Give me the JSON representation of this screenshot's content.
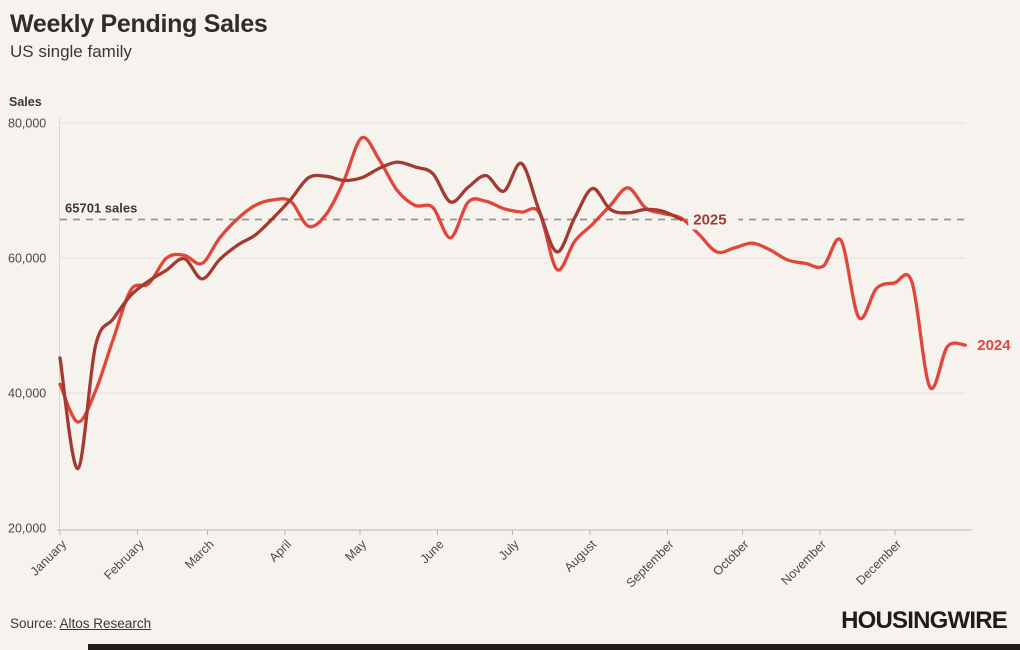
{
  "header": {
    "title": "Weekly Pending Sales",
    "subtitle": "US single family"
  },
  "footer": {
    "source_prefix": "Source: ",
    "source_link": "Altos Research",
    "logo": "HOUSINGWIRE"
  },
  "colors": {
    "background": "#f6f3ee",
    "grid": "#e9e5dc",
    "axis": "#c9c4ba",
    "tick": "#b8b3a9",
    "axis_text": "#4b4944",
    "reference": "#98938a",
    "series_2024": "#e2453a",
    "series_2025": "#a23b32",
    "logo_text": "#1e1d1b"
  },
  "chart_data": {
    "type": "line",
    "title": "Weekly Pending Sales",
    "subtitle": "US single family",
    "ylabel": "Sales",
    "xlabel": "",
    "grid": "horizontal",
    "legend_position": "line-end-labels",
    "ylim": [
      20000,
      80000
    ],
    "yticks": [
      20000,
      40000,
      60000,
      80000
    ],
    "ytick_labels": [
      "20,000",
      "40,000",
      "60,000",
      "80,000"
    ],
    "x_unit": "week",
    "months": [
      "January",
      "February",
      "March",
      "April",
      "May",
      "June",
      "July",
      "August",
      "September",
      "October",
      "November",
      "December"
    ],
    "month_start_day": [
      0,
      31,
      59,
      90,
      120,
      151,
      181,
      212,
      243,
      273,
      304,
      334
    ],
    "reference_line": {
      "value": 65701,
      "label": "65701 sales"
    },
    "series": [
      {
        "name": "2024",
        "color": "#e2453a",
        "values": [
          41300,
          35700,
          40300,
          48000,
          55300,
          56200,
          60000,
          60400,
          59200,
          63000,
          65800,
          67800,
          68600,
          68400,
          64700,
          66500,
          71500,
          77800,
          74500,
          70000,
          67800,
          67500,
          63000,
          68300,
          68400,
          67300,
          66800,
          66700,
          58300,
          62500,
          65000,
          67800,
          70400,
          67400,
          66600,
          65900,
          63500,
          60900,
          61500,
          62200,
          61200,
          59700,
          59200,
          58800,
          62600,
          51200,
          55500,
          56300,
          56400,
          40900,
          46900,
          47100
        ]
      },
      {
        "name": "2025",
        "color": "#a23b32",
        "values": [
          45200,
          28800,
          47000,
          51000,
          54500,
          56600,
          58200,
          59900,
          56900,
          59800,
          61900,
          63400,
          65900,
          68700,
          71900,
          72100,
          71500,
          71900,
          73300,
          74200,
          73500,
          72500,
          68300,
          70500,
          72200,
          69900,
          74000,
          67000,
          60900,
          66000,
          70300,
          67200,
          66700,
          67200,
          66900,
          65701
        ]
      }
    ]
  }
}
